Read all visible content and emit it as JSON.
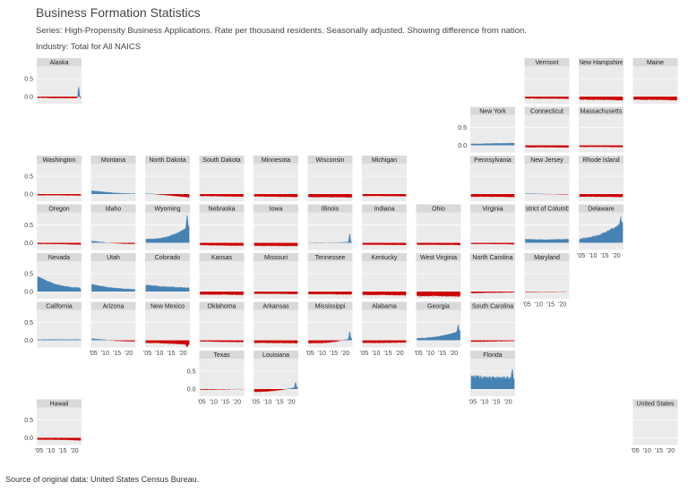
{
  "title": "Business Formation Statistics",
  "subtitle": "Series: High-Propensity Business Applications. Rate per thousand residents. Seasonally adjusted. Showing difference from nation.",
  "industry": "Industry: Total for All NAICS",
  "source": "Source of original data: United States Census Bureau.",
  "colors": {
    "positive": "#4682b4",
    "negative": "#cc0000",
    "panel": "#ebebeb",
    "strip": "#d9d9d9",
    "gridline": "#ffffff"
  },
  "chart_data": {
    "type": "area",
    "layout": "state-grid small multiples",
    "y_ticks": [
      0.0,
      0.5
    ],
    "y_tick_labels": [
      "0.0",
      "0.5"
    ],
    "ylim": [
      -0.2,
      0.85
    ],
    "x_ticks": [
      2005,
      2010,
      2015,
      2020
    ],
    "x_tick_labels": [
      "'05",
      "'10",
      "'15",
      "'20"
    ],
    "xlim": [
      2004,
      2023
    ],
    "panels": [
      {
        "name": "Alaska",
        "row": 0,
        "col": 0,
        "base": -0.04,
        "start": -0.03,
        "end": -0.04,
        "spike": 0.28
      },
      {
        "name": "Vermont",
        "row": 0,
        "col": 9,
        "base": -0.05,
        "start": -0.05,
        "end": -0.06,
        "spike": 0
      },
      {
        "name": "New Hampshire",
        "row": 0,
        "col": 10,
        "base": -0.08,
        "start": -0.08,
        "end": -0.1,
        "spike": 0
      },
      {
        "name": "Maine",
        "row": 0,
        "col": 11,
        "base": -0.08,
        "start": -0.08,
        "end": -0.1,
        "spike": 0
      },
      {
        "name": "New York",
        "row": 1,
        "col": 8,
        "base": 0.05,
        "start": 0.04,
        "end": 0.06,
        "spike": 0
      },
      {
        "name": "Connecticut",
        "row": 1,
        "col": 9,
        "base": -0.05,
        "start": -0.05,
        "end": -0.06,
        "spike": 0
      },
      {
        "name": "Massachusetts",
        "row": 1,
        "col": 10,
        "base": -0.04,
        "start": -0.04,
        "end": -0.05,
        "spike": 0
      },
      {
        "name": "Washington",
        "row": 2,
        "col": 0,
        "base": -0.03,
        "start": -0.03,
        "end": -0.04,
        "spike": 0
      },
      {
        "name": "Montana",
        "row": 2,
        "col": 1,
        "base": 0.02,
        "start": 0.1,
        "end": 0.01,
        "spike": 0
      },
      {
        "name": "North Dakota",
        "row": 2,
        "col": 2,
        "base": -0.03,
        "start": 0.02,
        "end": -0.09,
        "spike": 0
      },
      {
        "name": "South Dakota",
        "row": 2,
        "col": 3,
        "base": -0.06,
        "start": -0.05,
        "end": -0.07,
        "spike": 0
      },
      {
        "name": "Minnesota",
        "row": 2,
        "col": 4,
        "base": -0.07,
        "start": -0.06,
        "end": -0.08,
        "spike": 0
      },
      {
        "name": "Wisconsin",
        "row": 2,
        "col": 5,
        "base": -0.08,
        "start": -0.08,
        "end": -0.09,
        "spike": 0
      },
      {
        "name": "Michigan",
        "row": 2,
        "col": 6,
        "base": -0.05,
        "start": -0.05,
        "end": -0.06,
        "spike": 0
      },
      {
        "name": "Pennsylvania",
        "row": 2,
        "col": 8,
        "base": -0.07,
        "start": -0.07,
        "end": -0.08,
        "spike": 0
      },
      {
        "name": "New Jersey",
        "row": 2,
        "col": 9,
        "base": 0.0,
        "start": 0.01,
        "end": -0.01,
        "spike": 0
      },
      {
        "name": "Rhode Island",
        "row": 2,
        "col": 10,
        "base": -0.07,
        "start": -0.07,
        "end": -0.08,
        "spike": 0
      },
      {
        "name": "Oregon",
        "row": 3,
        "col": 0,
        "base": -0.03,
        "start": -0.03,
        "end": -0.05,
        "spike": 0
      },
      {
        "name": "Idaho",
        "row": 3,
        "col": 1,
        "base": -0.02,
        "start": 0.05,
        "end": -0.03,
        "spike": 0
      },
      {
        "name": "Wyoming",
        "row": 3,
        "col": 2,
        "base": 0.1,
        "start": 0.1,
        "end": 0.45,
        "spike": 0.8
      },
      {
        "name": "Nebraska",
        "row": 3,
        "col": 3,
        "base": -0.07,
        "start": -0.06,
        "end": -0.08,
        "spike": 0
      },
      {
        "name": "Iowa",
        "row": 3,
        "col": 4,
        "base": -0.08,
        "start": -0.08,
        "end": -0.09,
        "spike": 0
      },
      {
        "name": "Illinois",
        "row": 3,
        "col": 5,
        "base": 0.0,
        "start": 0.0,
        "end": 0.02,
        "spike": 0.25
      },
      {
        "name": "Indiana",
        "row": 3,
        "col": 6,
        "base": -0.05,
        "start": -0.05,
        "end": -0.06,
        "spike": 0
      },
      {
        "name": "Ohio",
        "row": 3,
        "col": 7,
        "base": -0.05,
        "start": -0.05,
        "end": -0.06,
        "spike": 0
      },
      {
        "name": "Virginia",
        "row": 3,
        "col": 8,
        "base": -0.03,
        "start": -0.03,
        "end": -0.04,
        "spike": 0
      },
      {
        "name": "District of Columbia",
        "row": 3,
        "col": 9,
        "base": 0.08,
        "start": 0.1,
        "end": 0.1,
        "spike": 0
      },
      {
        "name": "Delaware",
        "row": 3,
        "col": 10,
        "base": 0.18,
        "start": 0.1,
        "end": 0.55,
        "spike": 0.75
      },
      {
        "name": "Nevada",
        "row": 4,
        "col": 0,
        "base": 0.12,
        "start": 0.42,
        "end": 0.1,
        "spike": 0
      },
      {
        "name": "Utah",
        "row": 4,
        "col": 1,
        "base": 0.08,
        "start": 0.2,
        "end": 0.06,
        "spike": 0
      },
      {
        "name": "Colorado",
        "row": 4,
        "col": 2,
        "base": 0.12,
        "start": 0.18,
        "end": 0.1,
        "spike": 0
      },
      {
        "name": "Kansas",
        "row": 4,
        "col": 3,
        "base": -0.08,
        "start": -0.08,
        "end": -0.09,
        "spike": 0
      },
      {
        "name": "Missouri",
        "row": 4,
        "col": 4,
        "base": -0.06,
        "start": -0.06,
        "end": -0.07,
        "spike": 0
      },
      {
        "name": "Tennessee",
        "row": 4,
        "col": 5,
        "base": -0.07,
        "start": -0.07,
        "end": -0.08,
        "spike": 0
      },
      {
        "name": "Kentucky",
        "row": 4,
        "col": 6,
        "base": -0.09,
        "start": -0.09,
        "end": -0.1,
        "spike": 0
      },
      {
        "name": "West Virginia",
        "row": 4,
        "col": 7,
        "base": -0.12,
        "start": -0.12,
        "end": -0.13,
        "spike": 0
      },
      {
        "name": "North Carolina",
        "row": 4,
        "col": 8,
        "base": -0.03,
        "start": -0.04,
        "end": -0.02,
        "spike": 0
      },
      {
        "name": "Maryland",
        "row": 4,
        "col": 9,
        "base": -0.01,
        "start": -0.01,
        "end": 0.0,
        "spike": 0
      },
      {
        "name": "California",
        "row": 5,
        "col": 0,
        "base": 0.02,
        "start": 0.02,
        "end": 0.02,
        "spike": 0
      },
      {
        "name": "Arizona",
        "row": 5,
        "col": 1,
        "base": -0.02,
        "start": 0.05,
        "end": -0.03,
        "spike": 0
      },
      {
        "name": "New Mexico",
        "row": 5,
        "col": 2,
        "base": -0.08,
        "start": -0.07,
        "end": -0.12,
        "spike": -0.2
      },
      {
        "name": "Oklahoma",
        "row": 5,
        "col": 3,
        "base": -0.04,
        "start": -0.03,
        "end": -0.05,
        "spike": 0
      },
      {
        "name": "Arkansas",
        "row": 5,
        "col": 4,
        "base": -0.07,
        "start": -0.07,
        "end": -0.08,
        "spike": 0
      },
      {
        "name": "Mississippi",
        "row": 5,
        "col": 5,
        "base": -0.08,
        "start": -0.08,
        "end": 0.05,
        "spike": 0.25
      },
      {
        "name": "Alabama",
        "row": 5,
        "col": 6,
        "base": -0.07,
        "start": -0.07,
        "end": -0.06,
        "spike": 0
      },
      {
        "name": "Georgia",
        "row": 5,
        "col": 7,
        "base": 0.08,
        "start": 0.05,
        "end": 0.25,
        "spike": 0.45
      },
      {
        "name": "South Carolina",
        "row": 5,
        "col": 8,
        "base": -0.03,
        "start": -0.04,
        "end": -0.02,
        "spike": 0
      },
      {
        "name": "Texas",
        "row": 6,
        "col": 3,
        "base": -0.01,
        "start": -0.02,
        "end": 0.0,
        "spike": 0
      },
      {
        "name": "Louisiana",
        "row": 6,
        "col": 4,
        "base": -0.06,
        "start": -0.08,
        "end": 0.05,
        "spike": 0.2
      },
      {
        "name": "Florida",
        "row": 6,
        "col": 8,
        "base": 0.3,
        "start": 0.35,
        "end": 0.3,
        "spike": 0.55
      },
      {
        "name": "Hawaii",
        "row": 7,
        "col": 0,
        "base": -0.05,
        "start": -0.05,
        "end": -0.07,
        "spike": 0
      },
      {
        "name": "United States",
        "row": 7,
        "col": 11,
        "base": 0,
        "start": 0,
        "end": 0,
        "spike": 0
      }
    ]
  }
}
